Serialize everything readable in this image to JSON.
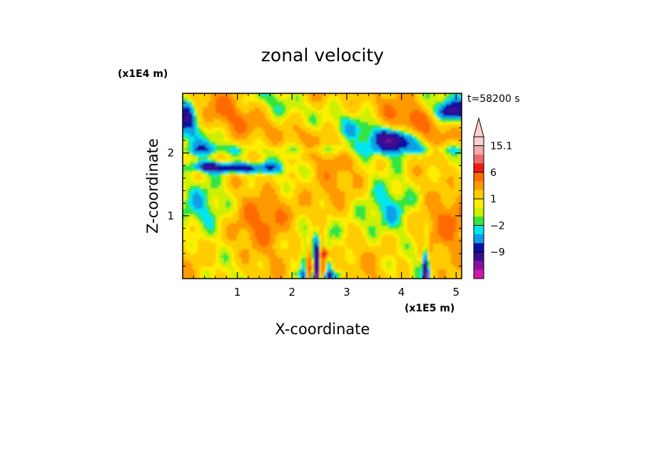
{
  "chart_data": {
    "type": "heatmap",
    "title": "zonal velocity",
    "xlabel": "X-coordinate",
    "ylabel": "Z-coordinate",
    "x_scale_label": "(x1E5 m)",
    "y_scale_label": "(x1E4 m)",
    "time_label": "t=58200 s",
    "xlim": [
      0,
      5.1
    ],
    "ylim": [
      0,
      2.95
    ],
    "x_ticks": [
      "1",
      "2",
      "3",
      "4",
      "5"
    ],
    "y_ticks": [
      "1",
      "2"
    ],
    "colorbar": {
      "labels": [
        "15.1",
        "6",
        "1",
        "−2",
        "−9"
      ],
      "levels": [
        -16,
        -12,
        -9,
        -6,
        -4,
        -2,
        -1,
        0,
        1,
        2,
        4,
        6,
        9,
        12,
        15.1
      ],
      "colors": [
        "#ff33cc",
        "#cc1aaa",
        "#88109e",
        "#3a0d90",
        "#0a0fa8",
        "#0aa0e6",
        "#00e6f0",
        "#33e640",
        "#ccf000",
        "#ffee00",
        "#ffcc00",
        "#ff9900",
        "#ff6a00",
        "#ee1a10",
        "#ee6b6b",
        "#f8aaaa",
        "#fcd0d0"
      ]
    },
    "features": [
      {
        "region": "upper layer, x 0-5.1, z 2.0-2.95",
        "pattern": "alternating bands of +2 to +9 (orange/yellow) and -2 to -9 (cyan/blue)"
      },
      {
        "region": "x 0.3-1.9, z 1.6-1.9",
        "value_range": [
          -12,
          -4
        ],
        "note": "strong negative (blue) band"
      },
      {
        "region": "x 3.6-4.3, z 2.0-2.4",
        "value_range": [
          -12,
          -4
        ],
        "note": "strong negative (blue) cell"
      },
      {
        "region": "mid layer, z 0.5-1.6",
        "value_range": [
          -2,
          6
        ],
        "note": "mostly green/yellow/orange"
      },
      {
        "region": "x 2.2-2.8, z 0.0-0.6",
        "value_range": [
          -12,
          12
        ],
        "note": "sharp plume of strong positive (red) and negative (blue) values"
      },
      {
        "region": "x 4.3-4.6, z 0.0-0.6",
        "value_range": [
          -12,
          6
        ],
        "note": "narrow negative plume"
      }
    ]
  }
}
